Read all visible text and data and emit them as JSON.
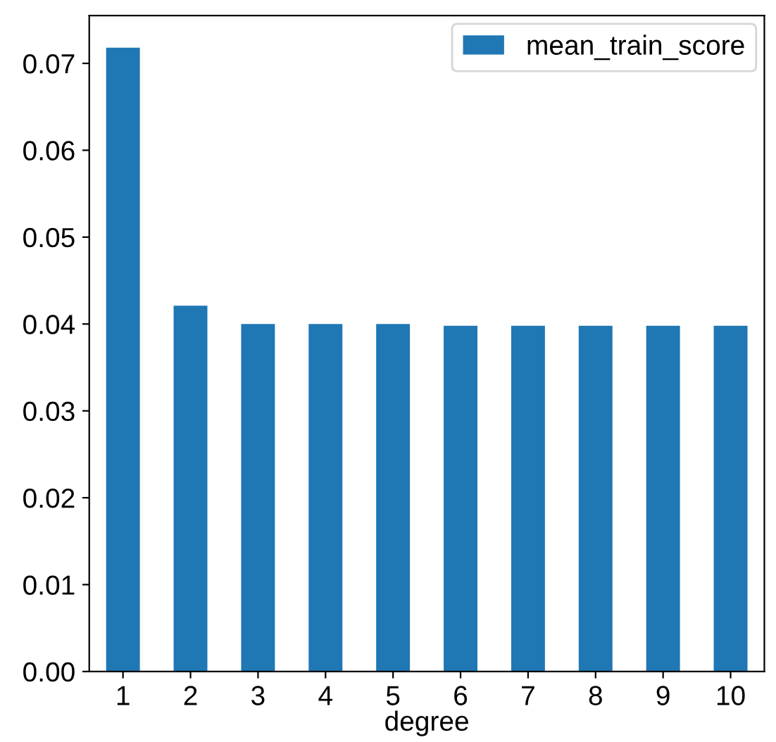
{
  "chart_data": {
    "type": "bar",
    "xlabel": "degree",
    "categories": [
      "1",
      "2",
      "3",
      "4",
      "5",
      "6",
      "7",
      "8",
      "9",
      "10"
    ],
    "series": [
      {
        "name": "mean_train_score",
        "color": "#1f77b4",
        "values": [
          0.0718,
          0.0421,
          0.04,
          0.04,
          0.04,
          0.0398,
          0.0398,
          0.0398,
          0.0398,
          0.0398
        ]
      }
    ],
    "ylim": [
      0,
      0.0755
    ],
    "yticks": [
      {
        "value": 0,
        "label": "0.00"
      },
      {
        "value": 0.01,
        "label": "0.01"
      },
      {
        "value": 0.02,
        "label": "0.02"
      },
      {
        "value": 0.03,
        "label": "0.03"
      },
      {
        "value": 0.04,
        "label": "0.04"
      },
      {
        "value": 0.05,
        "label": "0.05"
      },
      {
        "value": 0.06,
        "label": "0.06"
      },
      {
        "value": 0.07,
        "label": "0.07"
      }
    ],
    "grid": false,
    "legend": "top right"
  }
}
